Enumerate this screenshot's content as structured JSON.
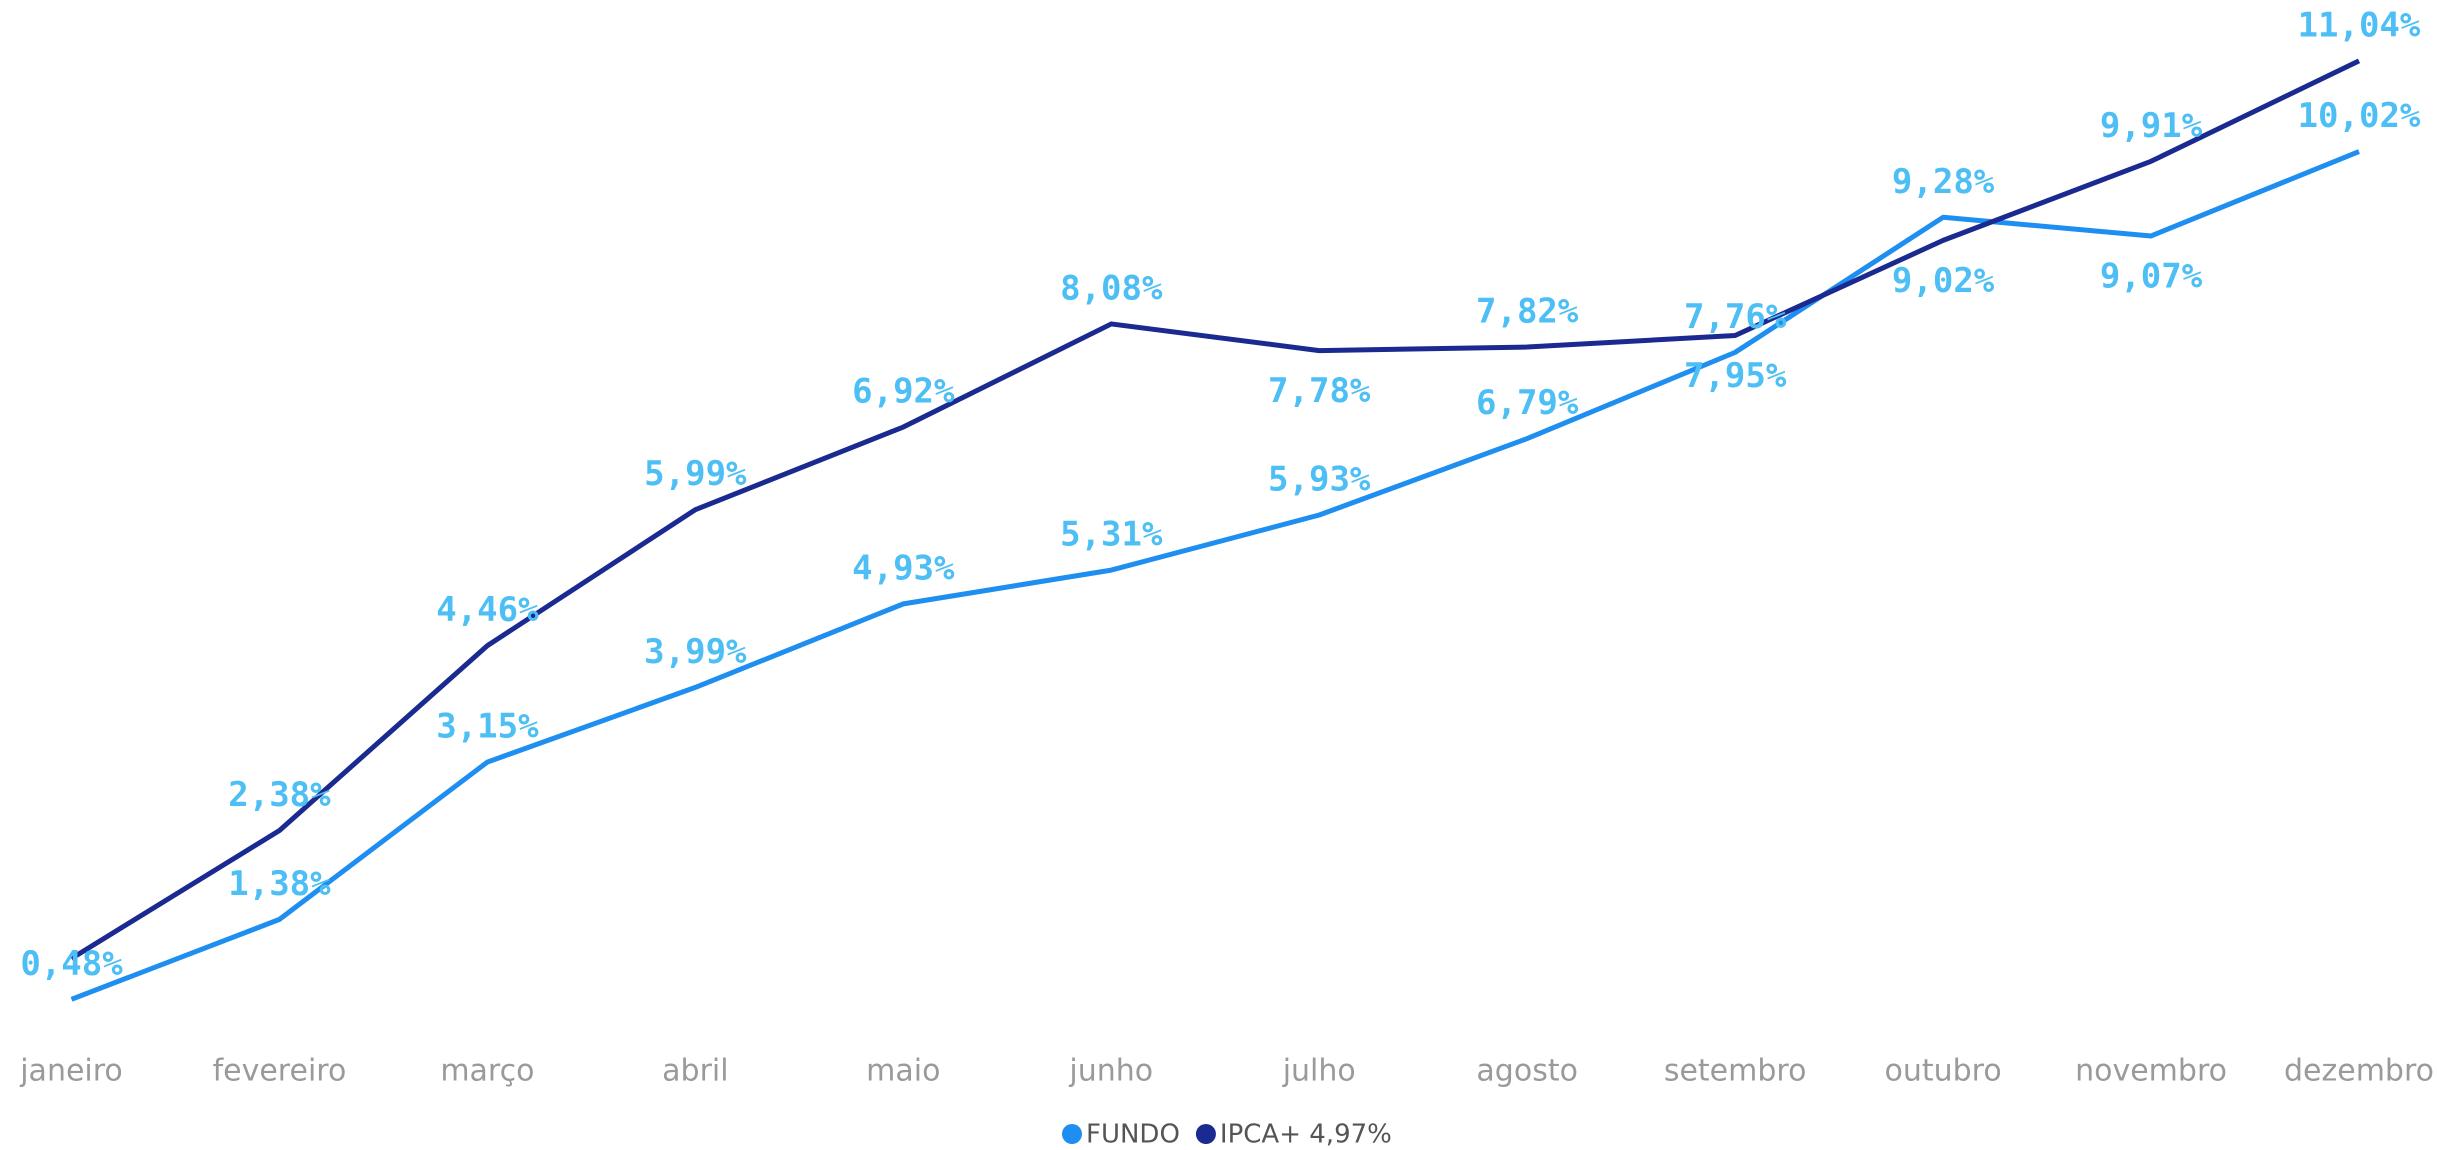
{
  "chart_data": {
    "type": "line",
    "categories": [
      "janeiro",
      "fevereiro",
      "março",
      "abril",
      "maio",
      "junho",
      "julho",
      "agosto",
      "setembro",
      "outubro",
      "novembro",
      "dezembro"
    ],
    "series": [
      {
        "name": "FUNDO",
        "color": "#1e8ff0",
        "values": [
          0.48,
          1.38,
          3.15,
          3.99,
          4.93,
          5.31,
          5.93,
          6.79,
          7.76,
          9.28,
          9.07,
          10.02
        ],
        "value_labels": [
          "0,48%",
          "1,38%",
          "3,15%",
          "3,99%",
          "4,93%",
          "5,31%",
          "5,93%",
          "6,79%",
          "7,76%",
          "9,28%",
          "9,07%",
          "10,02%"
        ]
      },
      {
        "name": "IPCA+ 4,97%",
        "color": "#1a2a90",
        "values": [
          0.94,
          2.38,
          4.46,
          5.99,
          6.92,
          8.08,
          7.78,
          7.82,
          7.95,
          9.02,
          9.91,
          11.04
        ],
        "value_labels": [
          null,
          "2,38%",
          "4,46%",
          "5,99%",
          "6,92%",
          "8,08%",
          "7,78%",
          "7,82%",
          "7,95%",
          "9,02%",
          "9,91%",
          "11,04%"
        ]
      }
    ],
    "ylim": [
      0,
      11.5
    ],
    "label_color": "#4dbff5",
    "legend": "bottom"
  }
}
